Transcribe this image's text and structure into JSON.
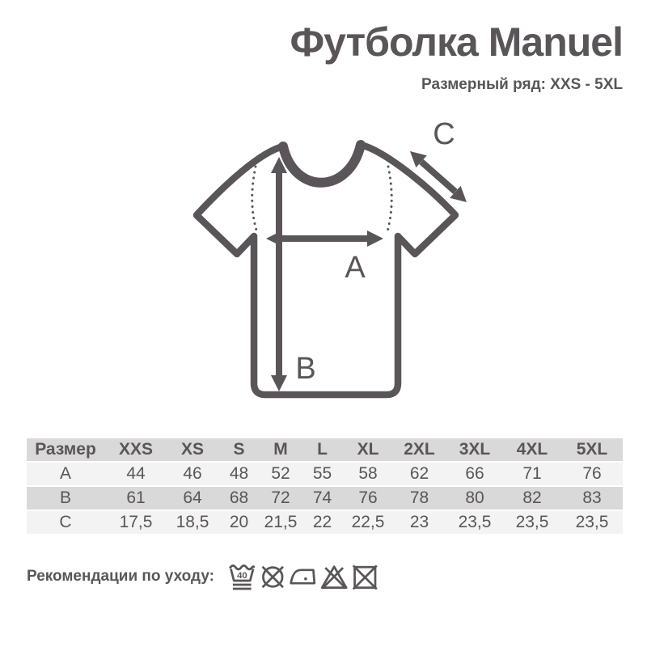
{
  "page": {
    "background": "#ffffff",
    "ink_color": "#5a5559"
  },
  "header": {
    "title": "Футболка Manuel",
    "subtitle": "Размерный ряд: XXS - 5XL"
  },
  "diagram": {
    "label_a": "A",
    "label_b": "B",
    "label_c": "C"
  },
  "size_table": {
    "header": [
      "Размер",
      "XXS",
      "XS",
      "S",
      "M",
      "L",
      "XL",
      "2XL",
      "3XL",
      "4XL",
      "5XL"
    ],
    "rows": [
      {
        "label": "A",
        "values": [
          "44",
          "46",
          "48",
          "52",
          "55",
          "58",
          "62",
          "66",
          "71",
          "76"
        ]
      },
      {
        "label": "B",
        "values": [
          "61",
          "64",
          "68",
          "72",
          "74",
          "76",
          "78",
          "80",
          "82",
          "83"
        ]
      },
      {
        "label": "C",
        "values": [
          "17,5",
          "18,5",
          "20",
          "21,5",
          "22",
          "22,5",
          "23",
          "23,5",
          "23,5",
          "23,5"
        ]
      }
    ],
    "colors": {
      "header_row_bg": "#d9d9d9",
      "light_row_bg": "#f3f3f3",
      "dark_row_bg": "#d9d9d9"
    }
  },
  "care": {
    "label": "Рекомендации по уходу:",
    "wash_temp": "40",
    "icons": [
      "wash-40-gentle-icon",
      "do-not-dry-clean-icon",
      "iron-low-heat-icon",
      "do-not-bleach-icon",
      "do-not-tumble-dry-icon"
    ]
  }
}
